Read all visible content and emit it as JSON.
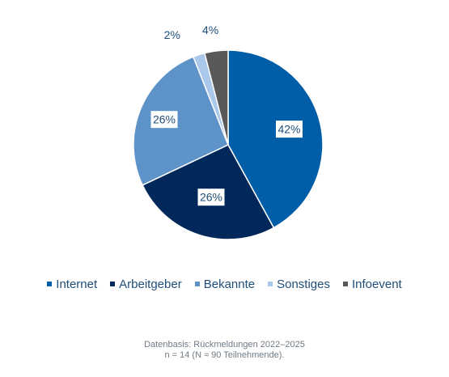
{
  "chart_data": {
    "type": "pie",
    "title": "",
    "categories": [
      "Internet",
      "Arbeitgeber",
      "Bekannte",
      "Sonstiges",
      "Infoevent"
    ],
    "values": [
      42,
      26,
      26,
      2,
      4
    ],
    "labels": [
      "42%",
      "26%",
      "26%",
      "2%",
      "4%"
    ],
    "colors": [
      "#005ea8",
      "#00285a",
      "#5e93c9",
      "#a9c8ea",
      "#595959"
    ],
    "legend_position": "bottom",
    "label_style": "white boxed inside slices, outside for small slices"
  },
  "footnote": {
    "line1": "Datenbasis: Rückmeldungen 2022–2025",
    "line2": "n = 14 (N ≈ 90 Teilnehmende)."
  }
}
